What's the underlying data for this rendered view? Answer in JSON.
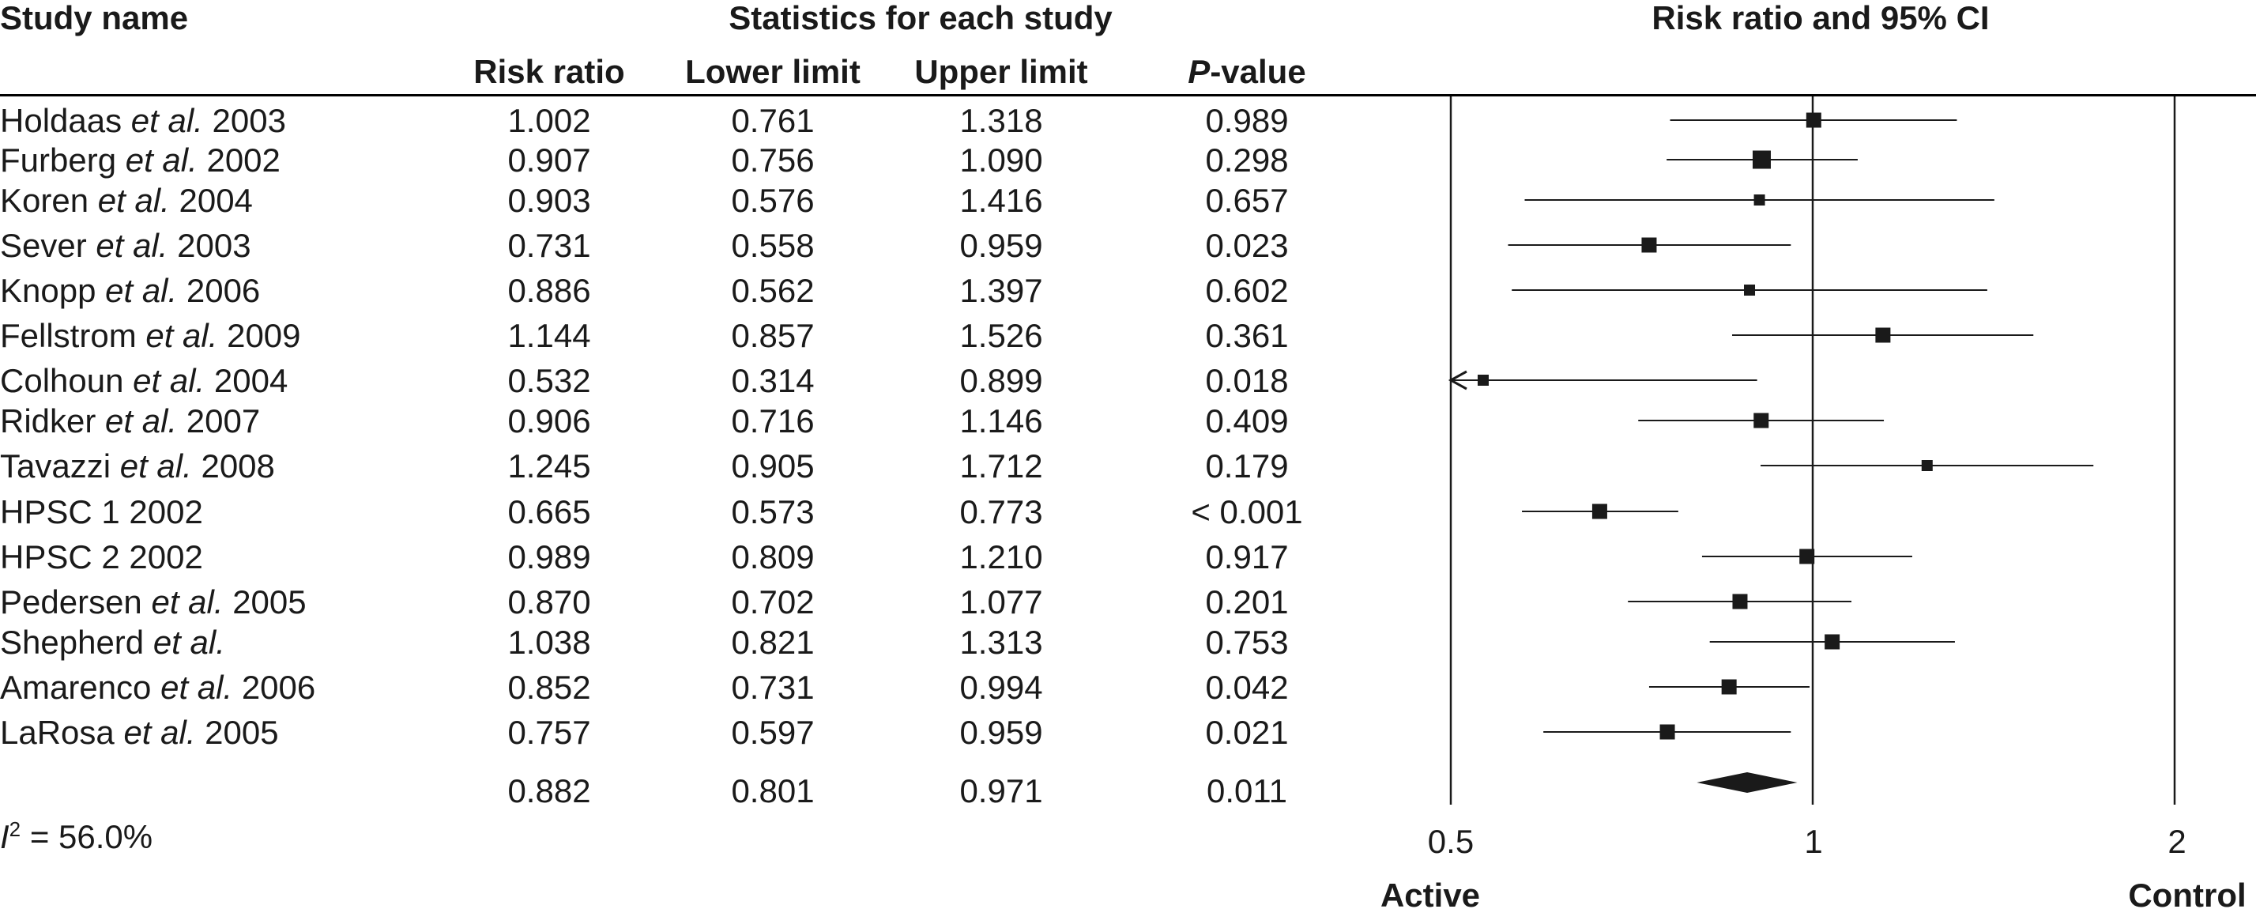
{
  "headers": {
    "study_name": "Study name",
    "statistics": "Statistics for each study",
    "ci_title": "Risk ratio and 95% CI",
    "risk_ratio": "Risk ratio",
    "lower_limit": "Lower limit",
    "upper_limit": "Upper limit",
    "p_value_italic": "P",
    "p_value_rest": "-value"
  },
  "studies": [
    {
      "author": "Holdaas",
      "etal": "et al.",
      "year": "2003",
      "rr": "1.002",
      "lower": "0.761",
      "upper": "1.318",
      "p": "0.989"
    },
    {
      "author": "Furberg",
      "etal": "et al.",
      "year": "2002",
      "rr": "0.907",
      "lower": "0.756",
      "upper": "1.090",
      "p": "0.298"
    },
    {
      "author": "Koren",
      "etal": "et al.",
      "year": "2004",
      "rr": "0.903",
      "lower": "0.576",
      "upper": "1.416",
      "p": "0.657"
    },
    {
      "author": "Sever",
      "etal": "et al.",
      "year": "2003",
      "rr": "0.731",
      "lower": "0.558",
      "upper": "0.959",
      "p": "0.023"
    },
    {
      "author": "Knopp",
      "etal": "et al.",
      "year": "2006",
      "rr": "0.886",
      "lower": "0.562",
      "upper": "1.397",
      "p": "0.602"
    },
    {
      "author": "Fellstrom",
      "etal": "et al.",
      "year": "2009",
      "rr": "1.144",
      "lower": "0.857",
      "upper": "1.526",
      "p": "0.361"
    },
    {
      "author": "Colhoun",
      "etal": "et al.",
      "year": "2004",
      "rr": "0.532",
      "lower": "0.314",
      "upper": "0.899",
      "p": "0.018"
    },
    {
      "author": "Ridker",
      "etal": "et al.",
      "year": "2007",
      "rr": "0.906",
      "lower": "0.716",
      "upper": "1.146",
      "p": "0.409"
    },
    {
      "author": "Tavazzi",
      "etal": "et al.",
      "year": "2008",
      "rr": "1.245",
      "lower": "0.905",
      "upper": "1.712",
      "p": "0.179"
    },
    {
      "author": "HPSC 1",
      "etal": "",
      "year": "2002",
      "rr": "0.665",
      "lower": "0.573",
      "upper": "0.773",
      "p": "< 0.001"
    },
    {
      "author": "HPSC 2",
      "etal": "",
      "year": "2002",
      "rr": "0.989",
      "lower": "0.809",
      "upper": "1.210",
      "p": "0.917"
    },
    {
      "author": "Pedersen",
      "etal": "et al.",
      "year": "2005",
      "rr": "0.870",
      "lower": "0.702",
      "upper": "1.077",
      "p": "0.201"
    },
    {
      "author": "Shepherd",
      "etal": "et al.",
      "year": "",
      "rr": "1.038",
      "lower": "0.821",
      "upper": "1.313",
      "p": "0.753"
    },
    {
      "author": "Amarenco",
      "etal": "et al.",
      "year": "2006",
      "rr": "0.852",
      "lower": "0.731",
      "upper": "0.994",
      "p": "0.042"
    },
    {
      "author": "LaRosa",
      "etal": "et al.",
      "year": "2005",
      "rr": "0.757",
      "lower": "0.597",
      "upper": "0.959",
      "p": "0.021"
    }
  ],
  "summary": {
    "rr": "0.882",
    "lower": "0.801",
    "upper": "0.971",
    "p": "0.011"
  },
  "heterogeneity": {
    "symbol": "I",
    "superscript": "2",
    "value": "= 56.0%"
  },
  "chart_data": {
    "type": "forest",
    "title": "Risk ratio and 95% CI",
    "scale": "log",
    "xlim": [
      0.5,
      2
    ],
    "ticks": [
      0.5,
      1,
      2
    ],
    "tick_labels": [
      "0.5",
      "1",
      "2"
    ],
    "left_label": "Active",
    "right_label": "Control",
    "studies": [
      {
        "name": "Holdaas et al. 2003",
        "rr": 1.002,
        "lower": 0.761,
        "upper": 1.318,
        "weight": 2
      },
      {
        "name": "Furberg et al. 2002",
        "rr": 0.907,
        "lower": 0.756,
        "upper": 1.09,
        "weight": 3
      },
      {
        "name": "Koren et al. 2004",
        "rr": 0.903,
        "lower": 0.576,
        "upper": 1.416,
        "weight": 1
      },
      {
        "name": "Sever et al. 2003",
        "rr": 0.731,
        "lower": 0.558,
        "upper": 0.959,
        "weight": 2
      },
      {
        "name": "Knopp et al. 2006",
        "rr": 0.886,
        "lower": 0.562,
        "upper": 1.397,
        "weight": 1
      },
      {
        "name": "Fellstrom et al. 2009",
        "rr": 1.144,
        "lower": 0.857,
        "upper": 1.526,
        "weight": 2
      },
      {
        "name": "Colhoun et al. 2004",
        "rr": 0.532,
        "lower": 0.314,
        "upper": 0.899,
        "weight": 1
      },
      {
        "name": "Ridker et al. 2007",
        "rr": 0.906,
        "lower": 0.716,
        "upper": 1.146,
        "weight": 2
      },
      {
        "name": "Tavazzi et al. 2008",
        "rr": 1.245,
        "lower": 0.905,
        "upper": 1.712,
        "weight": 1
      },
      {
        "name": "HPSC 1 2002",
        "rr": 0.665,
        "lower": 0.573,
        "upper": 0.773,
        "weight": 2
      },
      {
        "name": "HPSC 2 2002",
        "rr": 0.989,
        "lower": 0.809,
        "upper": 1.21,
        "weight": 2
      },
      {
        "name": "Pedersen et al. 2005",
        "rr": 0.87,
        "lower": 0.702,
        "upper": 1.077,
        "weight": 2
      },
      {
        "name": "Shepherd et al.",
        "rr": 1.038,
        "lower": 0.821,
        "upper": 1.313,
        "weight": 2
      },
      {
        "name": "Amarenco et al. 2006",
        "rr": 0.852,
        "lower": 0.731,
        "upper": 0.994,
        "weight": 2
      },
      {
        "name": "LaRosa et al. 2005",
        "rr": 0.757,
        "lower": 0.597,
        "upper": 0.959,
        "weight": 2
      }
    ],
    "summary": {
      "rr": 0.882,
      "lower": 0.801,
      "upper": 0.971
    },
    "colors": {
      "marker": "#1a1a1a",
      "line": "#1a1a1a"
    }
  }
}
